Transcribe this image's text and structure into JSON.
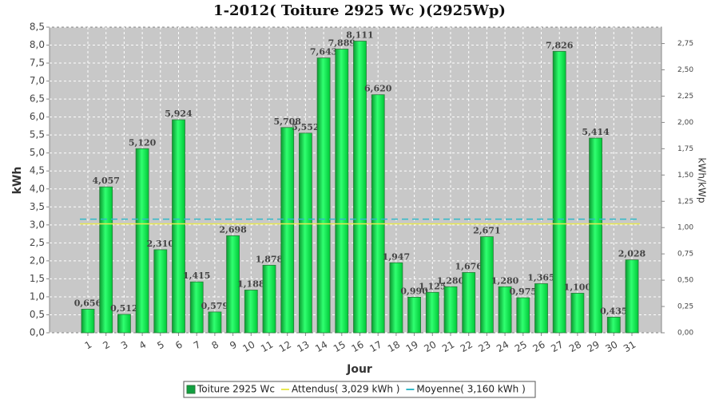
{
  "chart_data": {
    "type": "bar",
    "title": "1-2012( Toiture 2925 Wc )(2925Wp)",
    "x_label": "Jour",
    "y_label": "kWh",
    "y2_label": "kWh/kWp",
    "categories": [
      "1",
      "2",
      "3",
      "4",
      "5",
      "6",
      "7",
      "8",
      "9",
      "10",
      "11",
      "12",
      "13",
      "14",
      "15",
      "16",
      "17",
      "18",
      "19",
      "20",
      "21",
      "22",
      "23",
      "24",
      "25",
      "26",
      "27",
      "28",
      "29",
      "30",
      "31"
    ],
    "series": [
      {
        "name": "Toiture 2925 Wc",
        "color": "#00e040",
        "type": "bar",
        "values": [
          0.656,
          4.057,
          0.512,
          5.12,
          2.31,
          5.924,
          1.415,
          0.579,
          2.698,
          1.188,
          1.878,
          5.708,
          5.552,
          7.643,
          7.889,
          8.111,
          6.62,
          1.947,
          0.99,
          1.125,
          1.28,
          1.676,
          2.671,
          1.28,
          0.975,
          1.365,
          7.826,
          1.1,
          5.414,
          0.435,
          2.028
        ],
        "value_labels": [
          "0,656",
          "4,057",
          "0,512",
          "5,120",
          "2,310",
          "5,924",
          "1,415",
          "0,579",
          "2,698",
          "1,188",
          "1,878",
          "5,708",
          "5,552",
          "7,643",
          "7,889",
          "8,111",
          "6,620",
          "1,947",
          "0,990",
          "1,125",
          "1,280",
          "1,676",
          "2,671",
          "1,280",
          "0,975",
          "1,365",
          "7,826",
          "1,100",
          "5,414",
          "0,435",
          "2,028"
        ]
      },
      {
        "name": "Attendus( 3,029 kWh )",
        "color": "#e8e850",
        "type": "line",
        "values": [
          3.029,
          3.029,
          3.029,
          3.029,
          3.029,
          3.029,
          3.029,
          3.029,
          3.029,
          3.029,
          3.029,
          3.029,
          3.029,
          3.029,
          3.029,
          3.029,
          3.029,
          3.029,
          3.029,
          3.029,
          3.029,
          3.029,
          3.029,
          3.029,
          3.029,
          3.029,
          3.029,
          3.029,
          3.029,
          3.029,
          3.029
        ]
      },
      {
        "name": "Moyenne( 3,160 kWh )",
        "color": "#30b8c8",
        "type": "line",
        "dashed": true,
        "values": [
          3.16,
          3.16,
          3.16,
          3.16,
          3.16,
          3.16,
          3.16,
          3.16,
          3.16,
          3.16,
          3.16,
          3.16,
          3.16,
          3.16,
          3.16,
          3.16,
          3.16,
          3.16,
          3.16,
          3.16,
          3.16,
          3.16,
          3.16,
          3.16,
          3.16,
          3.16,
          3.16,
          3.16,
          3.16,
          3.16,
          3.16
        ]
      }
    ],
    "ylim": [
      0,
      8.5
    ],
    "yticks": [
      {
        "value": 0,
        "label": "0,0"
      },
      {
        "value": 0.5,
        "label": "0,5"
      },
      {
        "value": 1,
        "label": "1,0"
      },
      {
        "value": 1.5,
        "label": "1,5"
      },
      {
        "value": 2,
        "label": "2,0"
      },
      {
        "value": 2.5,
        "label": "2,5"
      },
      {
        "value": 3,
        "label": "3,0"
      },
      {
        "value": 3.5,
        "label": "3,5"
      },
      {
        "value": 4,
        "label": "4,0"
      },
      {
        "value": 4.5,
        "label": "4,5"
      },
      {
        "value": 5,
        "label": "5,0"
      },
      {
        "value": 5.5,
        "label": "5,5"
      },
      {
        "value": 6,
        "label": "6,0"
      },
      {
        "value": 6.5,
        "label": "6,5"
      },
      {
        "value": 7,
        "label": "7,0"
      },
      {
        "value": 7.5,
        "label": "7,5"
      },
      {
        "value": 8,
        "label": "8,0"
      },
      {
        "value": 8.5,
        "label": "8,5"
      }
    ],
    "y2lim": [
      0,
      2.906
    ],
    "y2ticks": [
      {
        "value": 0,
        "label": "0,00"
      },
      {
        "value": 0.25,
        "label": "0,25"
      },
      {
        "value": 0.5,
        "label": "0,50"
      },
      {
        "value": 0.75,
        "label": "0,75"
      },
      {
        "value": 1,
        "label": "1,00"
      },
      {
        "value": 1.25,
        "label": "1,25"
      },
      {
        "value": 1.5,
        "label": "1,50"
      },
      {
        "value": 1.75,
        "label": "1,75"
      },
      {
        "value": 2,
        "label": "2,00"
      },
      {
        "value": 2.25,
        "label": "2,25"
      },
      {
        "value": 2.5,
        "label": "2,50"
      },
      {
        "value": 2.75,
        "label": "2,75"
      }
    ],
    "grid": true
  }
}
